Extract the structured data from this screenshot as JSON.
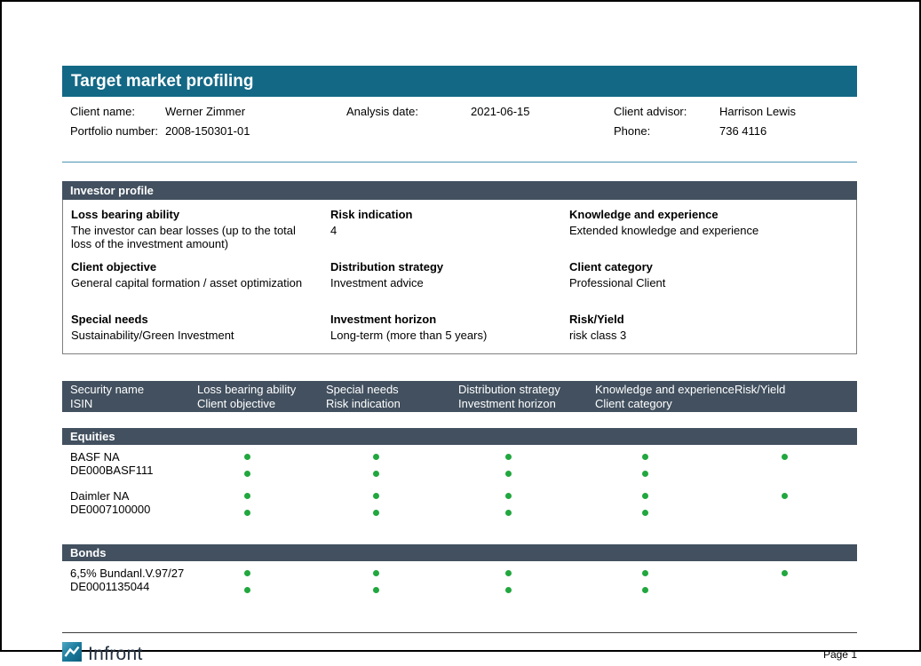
{
  "title_bar": {
    "title": "Target market profiling"
  },
  "client_info": {
    "client_name_label": "Client name:",
    "client_name": "Werner Zimmer",
    "analysis_date_label": "Analysis date:",
    "analysis_date": "2021-06-15",
    "client_advisor_label": "Client advisor:",
    "client_advisor": "Harrison Lewis",
    "portfolio_number_label": "Portfolio number:",
    "portfolio_number": "2008-150301-01",
    "phone_label": "Phone:",
    "phone": "736 4116"
  },
  "investor_profile": {
    "title": "Investor profile",
    "fields": [
      {
        "label": "Loss bearing ability",
        "value": "The investor can bear losses (up to the total loss of the investment amount)"
      },
      {
        "label": "Risk indication",
        "value": "4"
      },
      {
        "label": "Knowledge and experience",
        "value": "Extended knowledge and experience"
      },
      {
        "label": "Client objective",
        "value": "General capital formation / asset optimization"
      },
      {
        "label": "Distribution strategy",
        "value": "Investment advice"
      },
      {
        "label": "Client category",
        "value": "Professional Client"
      },
      {
        "label": "Special needs",
        "value": "Sustainability/Green Investment"
      },
      {
        "label": "Investment horizon",
        "value": "Long-term (more than 5 years)"
      },
      {
        "label": "Risk/Yield",
        "value": "risk class 3"
      }
    ]
  },
  "securities_table": {
    "columns": [
      {
        "line1": "Security name",
        "line2": "ISIN"
      },
      {
        "line1": "Loss bearing ability",
        "line2": "Client objective"
      },
      {
        "line1": "Special needs",
        "line2": "Risk indication"
      },
      {
        "line1": "Distribution strategy",
        "line2": "Investment horizon"
      },
      {
        "line1": "Knowledge and experience",
        "line2": "Client category"
      },
      {
        "line1": "Risk/Yield",
        "line2": ""
      }
    ],
    "match_color": "#21a73e",
    "sections": [
      {
        "title": "Equities",
        "rows": [
          {
            "name": "BASF NA",
            "isin": "DE000BASF111",
            "line1_dots": [
              true,
              true,
              true,
              true,
              true
            ],
            "line2_dots": [
              true,
              true,
              true,
              true,
              false
            ]
          },
          {
            "name": "Daimler NA",
            "isin": "DE0007100000",
            "line1_dots": [
              true,
              true,
              true,
              true,
              true
            ],
            "line2_dots": [
              true,
              true,
              true,
              true,
              false
            ]
          }
        ]
      },
      {
        "title": "Bonds",
        "rows": [
          {
            "name": "6,5% Bundanl.V.97/27",
            "isin": "DE0001135044",
            "line1_dots": [
              true,
              true,
              true,
              true,
              true
            ],
            "line2_dots": [
              true,
              true,
              true,
              true,
              false
            ]
          }
        ]
      }
    ]
  },
  "footer": {
    "brand": "Infront",
    "page": "Page 1"
  },
  "colors": {
    "accent_teal": "#136885",
    "header_slate": "#42505f",
    "match_green": "#21a73e",
    "separator_blue": "#4c93b4"
  }
}
